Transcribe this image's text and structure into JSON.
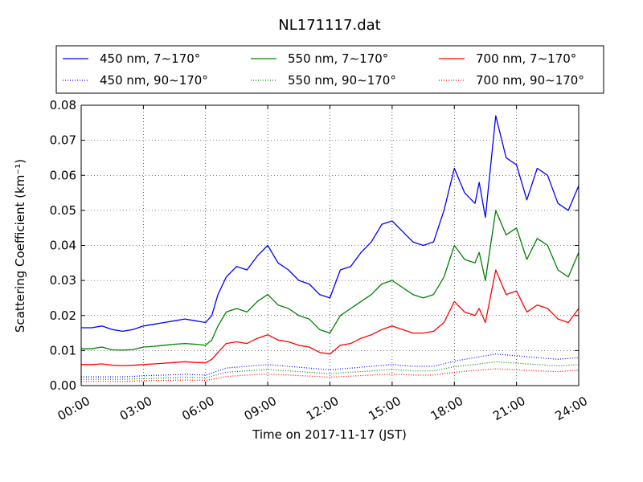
{
  "chart_data": {
    "type": "line",
    "title": "NL171117.dat",
    "xlabel": "Time on 2017-11-17 (JST)",
    "ylabel": "Scattering Coefficient (km⁻¹)",
    "xlim": [
      0,
      24
    ],
    "ylim": [
      0,
      0.08
    ],
    "x_ticks": [
      0,
      3,
      6,
      9,
      12,
      15,
      18,
      21,
      24
    ],
    "x_tick_labels": [
      "00:00",
      "03:00",
      "06:00",
      "09:00",
      "12:00",
      "15:00",
      "18:00",
      "21:00",
      "24:00"
    ],
    "y_ticks": [
      0,
      0.01,
      0.02,
      0.03,
      0.04,
      0.05,
      0.06,
      0.07,
      0.08
    ],
    "y_tick_labels": [
      "0.00",
      "0.01",
      "0.02",
      "0.03",
      "0.04",
      "0.05",
      "0.06",
      "0.07",
      "0.08"
    ],
    "grid": true,
    "legend_position": "top",
    "legend_columns": 3,
    "series": [
      {
        "name": "450 nm, 7∼170°",
        "color": "#0000ff",
        "style": "solid",
        "x": [
          0,
          0.5,
          1,
          1.5,
          2,
          2.5,
          3,
          3.5,
          4,
          4.5,
          5,
          5.5,
          6,
          6.3,
          6.6,
          7,
          7.5,
          8,
          8.5,
          9,
          9.5,
          10,
          10.5,
          11,
          11.5,
          12,
          12.5,
          13,
          13.5,
          14,
          14.5,
          15,
          15.5,
          16,
          16.5,
          17,
          17.5,
          18,
          18.5,
          19,
          19.2,
          19.5,
          20,
          20.5,
          21,
          21.5,
          22,
          22.5,
          23,
          23.5,
          24
        ],
        "y": [
          0.0165,
          0.0165,
          0.017,
          0.016,
          0.0155,
          0.016,
          0.017,
          0.0175,
          0.018,
          0.0185,
          0.019,
          0.0185,
          0.018,
          0.02,
          0.026,
          0.031,
          0.034,
          0.033,
          0.037,
          0.04,
          0.035,
          0.033,
          0.03,
          0.029,
          0.026,
          0.025,
          0.033,
          0.034,
          0.038,
          0.041,
          0.046,
          0.047,
          0.044,
          0.041,
          0.04,
          0.041,
          0.05,
          0.062,
          0.055,
          0.052,
          0.058,
          0.048,
          0.077,
          0.065,
          0.063,
          0.053,
          0.062,
          0.06,
          0.052,
          0.05,
          0.057
        ]
      },
      {
        "name": "550 nm, 7∼170°",
        "color": "#008000",
        "style": "solid",
        "x": [
          0,
          0.5,
          1,
          1.5,
          2,
          2.5,
          3,
          3.5,
          4,
          4.5,
          5,
          5.5,
          6,
          6.3,
          6.6,
          7,
          7.5,
          8,
          8.5,
          9,
          9.5,
          10,
          10.5,
          11,
          11.5,
          12,
          12.5,
          13,
          13.5,
          14,
          14.5,
          15,
          15.5,
          16,
          16.5,
          17,
          17.5,
          18,
          18.5,
          19,
          19.2,
          19.5,
          20,
          20.5,
          21,
          21.5,
          22,
          22.5,
          23,
          23.5,
          24
        ],
        "y": [
          0.0105,
          0.0105,
          0.011,
          0.0102,
          0.0101,
          0.0103,
          0.011,
          0.0112,
          0.0115,
          0.0118,
          0.012,
          0.0118,
          0.0115,
          0.013,
          0.017,
          0.021,
          0.022,
          0.021,
          0.024,
          0.026,
          0.023,
          0.022,
          0.02,
          0.019,
          0.016,
          0.015,
          0.02,
          0.022,
          0.024,
          0.026,
          0.029,
          0.03,
          0.028,
          0.026,
          0.025,
          0.026,
          0.031,
          0.04,
          0.036,
          0.035,
          0.038,
          0.03,
          0.05,
          0.043,
          0.045,
          0.036,
          0.042,
          0.04,
          0.033,
          0.031,
          0.038
        ]
      },
      {
        "name": "700 nm, 7∼170°",
        "color": "#ff0000",
        "style": "solid",
        "x": [
          0,
          0.5,
          1,
          1.5,
          2,
          2.5,
          3,
          3.5,
          4,
          4.5,
          5,
          5.5,
          6,
          6.3,
          6.6,
          7,
          7.5,
          8,
          8.5,
          9,
          9.5,
          10,
          10.5,
          11,
          11.5,
          12,
          12.5,
          13,
          13.5,
          14,
          14.5,
          15,
          15.5,
          16,
          16.5,
          17,
          17.5,
          18,
          18.5,
          19,
          19.2,
          19.5,
          20,
          20.5,
          21,
          21.5,
          22,
          22.5,
          23,
          23.5,
          24
        ],
        "y": [
          0.006,
          0.006,
          0.0062,
          0.0058,
          0.0057,
          0.0058,
          0.006,
          0.0062,
          0.0064,
          0.0066,
          0.0068,
          0.0066,
          0.0065,
          0.0075,
          0.0095,
          0.012,
          0.0125,
          0.012,
          0.0135,
          0.0145,
          0.013,
          0.0125,
          0.0115,
          0.011,
          0.0095,
          0.009,
          0.0115,
          0.012,
          0.0135,
          0.0145,
          0.016,
          0.017,
          0.016,
          0.015,
          0.015,
          0.0155,
          0.018,
          0.024,
          0.021,
          0.02,
          0.022,
          0.018,
          0.033,
          0.026,
          0.027,
          0.021,
          0.023,
          0.022,
          0.019,
          0.018,
          0.022
        ]
      },
      {
        "name": "450 nm, 90∼170°",
        "color": "#0000ff",
        "style": "dotted",
        "x": [
          0,
          1,
          2,
          3,
          4,
          5,
          6,
          6.5,
          7,
          8,
          9,
          10,
          11,
          12,
          13,
          14,
          15,
          16,
          17,
          18,
          19,
          20,
          21,
          22,
          23,
          24
        ],
        "y": [
          0.0025,
          0.0025,
          0.0025,
          0.0028,
          0.003,
          0.0032,
          0.003,
          0.004,
          0.005,
          0.0055,
          0.006,
          0.0055,
          0.005,
          0.0045,
          0.005,
          0.0055,
          0.006,
          0.0055,
          0.0055,
          0.007,
          0.008,
          0.009,
          0.0085,
          0.008,
          0.0075,
          0.008
        ]
      },
      {
        "name": "550 nm, 90∼170°",
        "color": "#008000",
        "style": "dotted",
        "x": [
          0,
          1,
          2,
          3,
          4,
          5,
          6,
          6.5,
          7,
          8,
          9,
          10,
          11,
          12,
          13,
          14,
          15,
          16,
          17,
          18,
          19,
          20,
          21,
          22,
          23,
          24
        ],
        "y": [
          0.0018,
          0.0018,
          0.0018,
          0.002,
          0.0022,
          0.0024,
          0.0022,
          0.003,
          0.0038,
          0.0042,
          0.0046,
          0.0042,
          0.0038,
          0.0034,
          0.0038,
          0.0042,
          0.0046,
          0.0042,
          0.0042,
          0.0054,
          0.006,
          0.0068,
          0.0064,
          0.006,
          0.0056,
          0.006
        ]
      },
      {
        "name": "700 nm, 90∼170°",
        "color": "#ff0000",
        "style": "dotted",
        "x": [
          0,
          1,
          2,
          3,
          4,
          5,
          6,
          6.5,
          7,
          8,
          9,
          10,
          11,
          12,
          13,
          14,
          15,
          16,
          17,
          18,
          19,
          20,
          21,
          22,
          23,
          24
        ],
        "y": [
          0.0012,
          0.0012,
          0.0012,
          0.0014,
          0.0015,
          0.0016,
          0.0015,
          0.002,
          0.0026,
          0.003,
          0.0033,
          0.003,
          0.0027,
          0.0024,
          0.0027,
          0.003,
          0.0033,
          0.003,
          0.003,
          0.0038,
          0.0043,
          0.0048,
          0.0045,
          0.0042,
          0.004,
          0.0044
        ]
      }
    ]
  }
}
